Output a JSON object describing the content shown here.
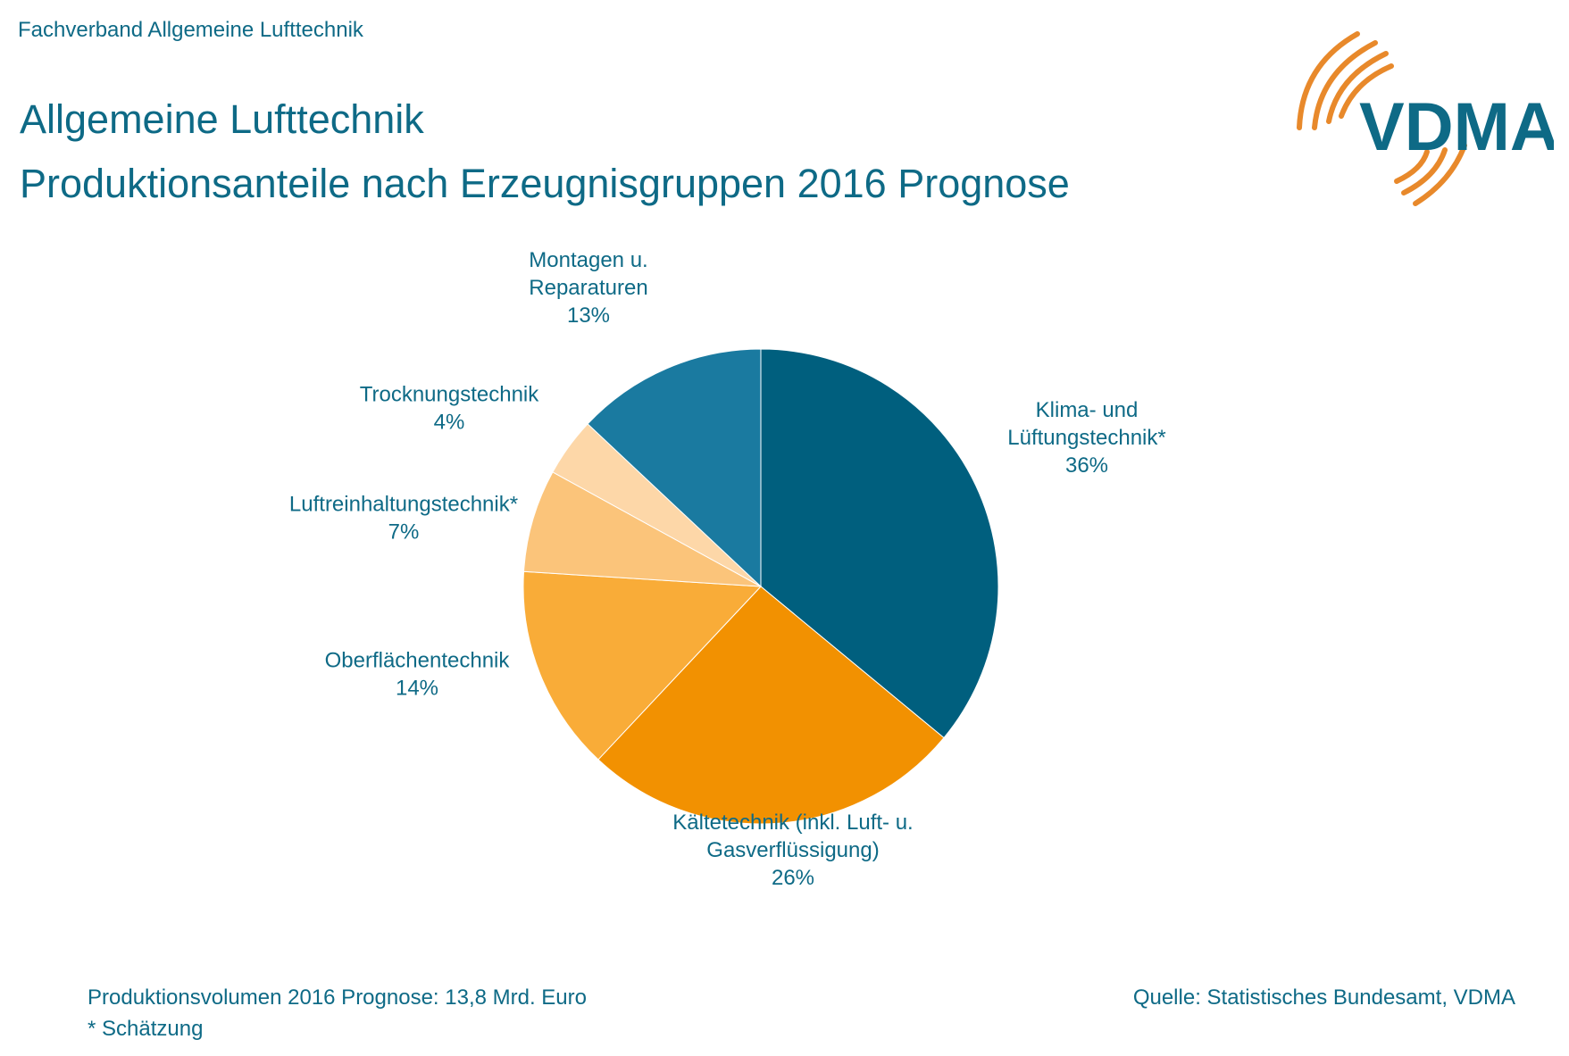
{
  "header": {
    "org": "Fachverband Allgemeine Lufttechnik"
  },
  "title": {
    "line1": "Allgemeine Lufttechnik",
    "line2": "Produktionsanteile nach Erzeugnisgruppen 2016 Prognose"
  },
  "logo": {
    "text": "VDMA",
    "text_color": "#0e6a86",
    "arc_color": "#e8892b"
  },
  "chart_data": {
    "type": "pie",
    "title": "Produktionsanteile nach Erzeugnisgruppen 2016 Prognose",
    "unit": "%",
    "start": "12 o'clock, clockwise",
    "slices": [
      {
        "label": [
          "Klima- und",
          "Lüftungstechnik*"
        ],
        "value": 36,
        "value_label": "36%",
        "color": "#005f7e"
      },
      {
        "label": [
          "Kältetechnik (inkl. Luft- u.",
          "Gasverflüssigung)"
        ],
        "value": 26,
        "value_label": "26%",
        "color": "#f29101"
      },
      {
        "label": [
          "Oberflächentechnik"
        ],
        "value": 14,
        "value_label": "14%",
        "color": "#f9ac38"
      },
      {
        "label": [
          "Luftreinhaltungstechnik*"
        ],
        "value": 7,
        "value_label": "7%",
        "color": "#fbc47a"
      },
      {
        "label": [
          "Trocknungstechnik"
        ],
        "value": 4,
        "value_label": "4%",
        "color": "#fdd7a8"
      },
      {
        "label": [
          "Montagen u.",
          "Reparaturen"
        ],
        "value": 13,
        "value_label": "13%",
        "color": "#1a7aa0"
      }
    ]
  },
  "footer": {
    "volume": "Produktionsvolumen 2016 Prognose: 13,8 Mrd. Euro",
    "note": "* Schätzung",
    "source": "Quelle: Statistisches Bundesamt, VDMA"
  }
}
